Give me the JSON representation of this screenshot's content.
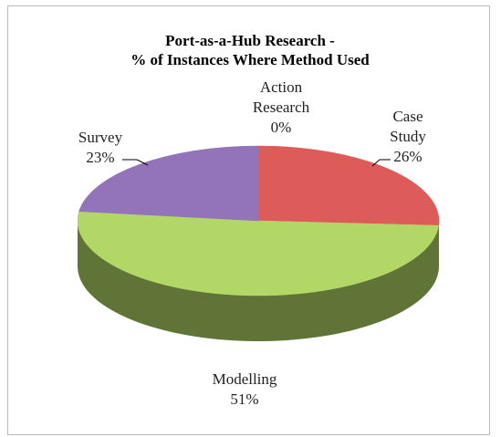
{
  "chart_data": {
    "type": "pie",
    "title": "Port-as-a-Hub Research -\n% of Instances Where Method Used",
    "categories": [
      "Action\nResearch",
      "Case\nStudy",
      "Modelling",
      "Survey"
    ],
    "values": [
      0,
      26,
      51,
      23
    ],
    "value_labels": [
      "0%",
      "26%",
      "51%",
      "23%"
    ],
    "colors": [
      "#4f81bd",
      "#c0504d",
      "#9bbb59",
      "#8064a2"
    ],
    "three_d": true
  }
}
